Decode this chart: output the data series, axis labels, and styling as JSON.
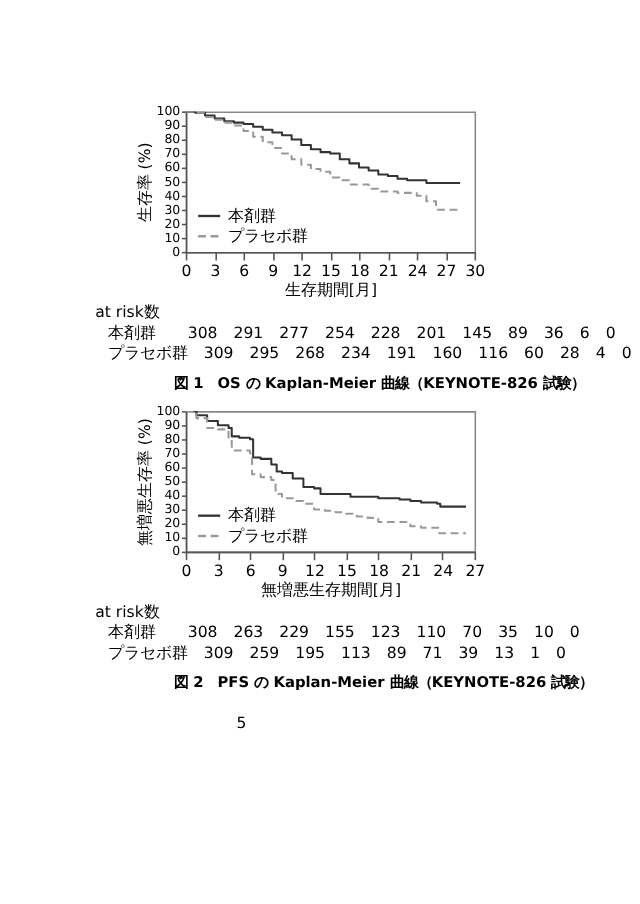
{
  "chart_data": [
    {
      "type": "step",
      "title": "図 1　OS の Kaplan-Meier 曲線（KEYNOTE-826 試験）",
      "xlabel": "生存期間[月]",
      "ylabel": "生存率 (%)",
      "xlim": [
        0,
        30
      ],
      "xticks": [
        0,
        3,
        6,
        9,
        12,
        15,
        18,
        21,
        24,
        27,
        30
      ],
      "ylim": [
        0,
        100
      ],
      "yticks": [
        0,
        10,
        20,
        30,
        40,
        50,
        60,
        70,
        80,
        90,
        100
      ],
      "grid": false,
      "legend": "bottom left",
      "marker": "none",
      "annotations": [
        "at risk数",
        "本剤群　　308　291　277　254　228　201　145　89　36　6　0",
        "プラセボ群　309　295　268　234　191　160　116　60　28　4　0"
      ],
      "series": [
        {
          "name": "本剤群",
          "color": "#333333",
          "line_style": "solid",
          "x": [
            0,
            1,
            2,
            3,
            4,
            5,
            6,
            7,
            8,
            9,
            10,
            11,
            12,
            13,
            14,
            15,
            16,
            17,
            18,
            19,
            20,
            21,
            22,
            23,
            24,
            25,
            26,
            27,
            28.5
          ],
          "values": [
            100,
            99,
            97,
            95,
            93,
            92,
            91,
            89,
            87,
            85,
            83,
            80,
            76,
            73,
            71,
            70,
            66,
            63,
            60,
            58,
            55,
            54,
            52,
            51,
            51,
            49,
            49,
            49,
            49
          ]
        },
        {
          "name": "プラセボ群",
          "color": "#999999",
          "line_style": "dashed",
          "x": [
            0,
            1,
            2,
            3,
            4,
            5,
            6,
            7,
            8,
            9,
            10,
            11,
            12,
            13,
            14,
            15,
            16,
            17,
            18,
            19,
            20,
            21,
            22,
            23,
            24,
            25,
            26,
            27,
            28.5
          ],
          "values": [
            100,
            99,
            96,
            94,
            92,
            90,
            86,
            82,
            78,
            74,
            70,
            66,
            62,
            59,
            57,
            53,
            51,
            48,
            48,
            45,
            43,
            43,
            42,
            42,
            40,
            36,
            30,
            30,
            30
          ]
        }
      ]
    },
    {
      "type": "step",
      "title": "図 2　PFS の Kaplan-Meier 曲線（KEYNOTE-826 試験）",
      "xlabel": "無増悪生存期間[月]",
      "ylabel": "無増悪生存率 (%)",
      "xlim": [
        0,
        27
      ],
      "xticks": [
        0,
        3,
        6,
        9,
        12,
        15,
        18,
        21,
        24,
        27
      ],
      "ylim": [
        0,
        100
      ],
      "yticks": [
        0,
        10,
        20,
        30,
        40,
        50,
        60,
        70,
        80,
        90,
        100
      ],
      "grid": false,
      "legend": "bottom left",
      "marker": "none",
      "annotations": [
        "at risk数",
        "本剤群　　308　263　229　155　123　110　70　35　10　0",
        "プラセボ群　309　259　195　113　89　71　39　13　1　0",
        "5"
      ],
      "series": [
        {
          "name": "本剤群",
          "color": "#333333",
          "line_style": "solid",
          "x": [
            0,
            1,
            2,
            3,
            4,
            4.3,
            5,
            6,
            6.3,
            7,
            8,
            8.5,
            9,
            10,
            11,
            12,
            12.6,
            15,
            15.4,
            18,
            20,
            21,
            22,
            23.5,
            23.8,
            26.2
          ],
          "values": [
            100,
            97,
            93,
            90,
            88,
            82,
            81,
            80,
            67,
            66,
            62,
            57,
            56,
            52,
            46,
            45,
            41,
            41,
            39,
            38,
            37,
            36,
            35,
            34,
            32,
            32
          ]
        },
        {
          "name": "プラセボ群",
          "color": "#999999",
          "line_style": "dashed",
          "x": [
            0,
            1,
            2,
            3,
            4,
            4.3,
            6,
            6.2,
            7,
            8,
            8.4,
            9,
            10,
            11,
            12,
            13,
            14,
            15,
            16,
            17,
            18,
            19,
            20,
            21,
            22,
            23,
            23.7,
            26.2
          ],
          "values": [
            100,
            95,
            88,
            87,
            80,
            72,
            70,
            55,
            53,
            51,
            41,
            38,
            36,
            34,
            30,
            29,
            28,
            27,
            25,
            24,
            21,
            21,
            21,
            18,
            17,
            17,
            13,
            13
          ]
        }
      ]
    }
  ]
}
